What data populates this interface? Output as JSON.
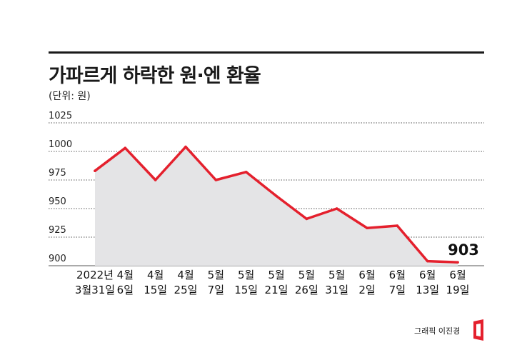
{
  "title": "가파르게 하락한 원·엔 환율",
  "unit": "(단위: 원)",
  "credit": "그래픽 이진경",
  "chart_data": {
    "type": "area",
    "ylim": [
      900,
      1025
    ],
    "yticks": [
      "1025",
      "1000",
      "975",
      "950",
      "925",
      "900"
    ],
    "yticks_values": [
      1025,
      1000,
      975,
      950,
      925,
      900
    ],
    "categories": [
      [
        "2022년",
        "3월31일"
      ],
      [
        "4월",
        "6일"
      ],
      [
        "4월",
        "15일"
      ],
      [
        "4월",
        "25일"
      ],
      [
        "5월",
        "7일"
      ],
      [
        "5월",
        "15일"
      ],
      [
        "5월",
        "21일"
      ],
      [
        "5월",
        "26일"
      ],
      [
        "5월",
        "31일"
      ],
      [
        "6월",
        "2일"
      ],
      [
        "6월",
        "7일"
      ],
      [
        "6월",
        "13일"
      ],
      [
        "6월",
        "19일"
      ]
    ],
    "values": [
      983,
      1003,
      975,
      1004,
      975,
      982,
      961,
      941,
      950,
      933,
      935,
      904,
      903
    ],
    "annotation": "903",
    "grid": true,
    "line_color": "#e4202d",
    "fill_color": "#e4e4e6",
    "grid_color": "#555555"
  }
}
